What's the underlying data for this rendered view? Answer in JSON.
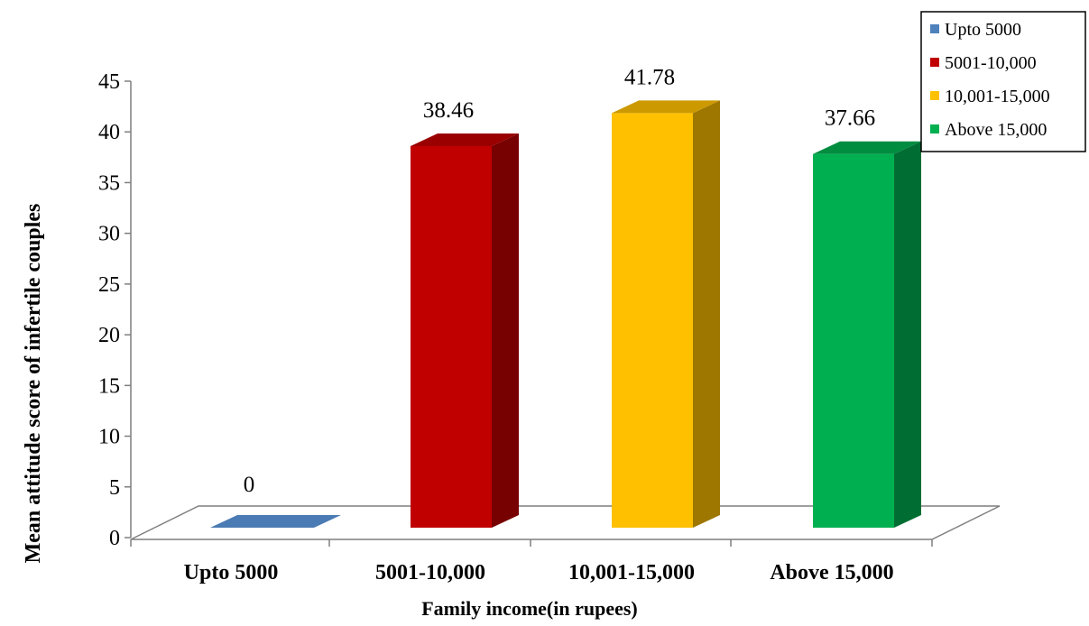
{
  "chart_data": {
    "type": "bar",
    "title": "",
    "xlabel": "Family income(in rupees)",
    "ylabel": "Mean attitude  score of infertile couples",
    "categories": [
      "Upto 5000",
      "5001-10,000",
      "10,001-15,000",
      "Above 15,000"
    ],
    "values": [
      0,
      38.46,
      41.78,
      37.66
    ],
    "data_labels": [
      "0",
      "38.46",
      "41.78",
      "37.66"
    ],
    "yticks": [
      "0",
      "5",
      "10",
      "15",
      "20",
      "25",
      "30",
      "35",
      "40",
      "45"
    ],
    "ylim": [
      0,
      45
    ],
    "grid": false,
    "legend_position": "top-right",
    "legend": [
      "Upto 5000",
      "5001-10,000",
      "10,001-15,000",
      "Above 15,000"
    ],
    "colors": [
      "#4f81bd",
      "#c00000",
      "#ffc000",
      "#00b050"
    ]
  }
}
